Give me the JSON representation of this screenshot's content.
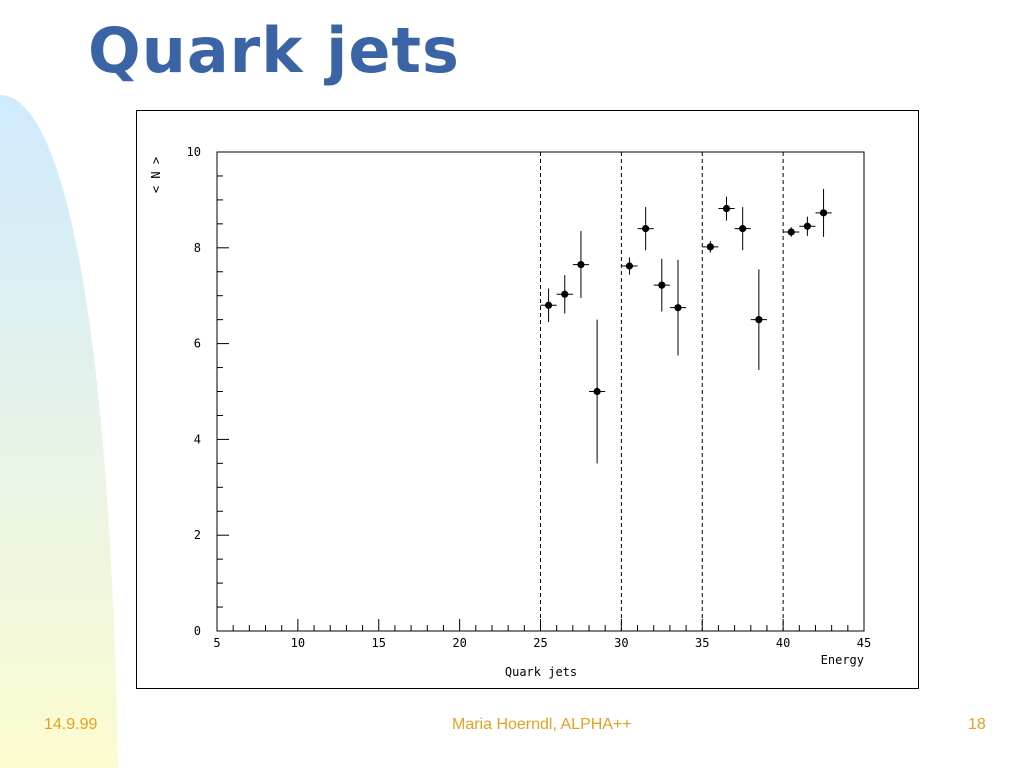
{
  "slide": {
    "title": "Quark jets",
    "footer_left": "14.9.99",
    "footer_center": "Maria Hoerndl, ALPHA++",
    "footer_right": "18"
  },
  "colors": {
    "title": "#3a64a6",
    "footer": "#e6a020",
    "band_top": "#cfeaff",
    "band_bottom": "#fcfcd0"
  },
  "chart_data": {
    "type": "scatter",
    "title": "Quark jets",
    "xlabel": "Energy",
    "ylabel": "< N >",
    "xlim": [
      5,
      45
    ],
    "ylim": [
      0,
      10
    ],
    "x_ticks": [
      5,
      10,
      15,
      20,
      25,
      30,
      35,
      40,
      45
    ],
    "y_ticks": [
      0,
      2,
      4,
      6,
      8,
      10
    ],
    "vertical_lines": [
      25,
      30,
      35,
      40
    ],
    "grid": false,
    "x_errors": 0.5,
    "series": [
      {
        "points": [
          {
            "x": 25.5,
            "y": 6.8,
            "err": 0.35
          },
          {
            "x": 26.5,
            "y": 7.03,
            "err": 0.4
          },
          {
            "x": 27.5,
            "y": 7.65,
            "err": 0.7
          },
          {
            "x": 28.5,
            "y": 5.0,
            "err": 1.5
          },
          {
            "x": 30.5,
            "y": 7.62,
            "err": 0.18
          },
          {
            "x": 31.5,
            "y": 8.4,
            "err": 0.45
          },
          {
            "x": 32.5,
            "y": 7.22,
            "err": 0.55
          },
          {
            "x": 33.5,
            "y": 6.75,
            "err": 1.0
          },
          {
            "x": 35.5,
            "y": 8.02,
            "err": 0.12
          },
          {
            "x": 36.5,
            "y": 8.82,
            "err": 0.25
          },
          {
            "x": 37.5,
            "y": 8.4,
            "err": 0.45
          },
          {
            "x": 38.5,
            "y": 6.5,
            "err": 1.05
          },
          {
            "x": 40.5,
            "y": 8.33,
            "err": 0.1
          },
          {
            "x": 41.5,
            "y": 8.45,
            "err": 0.2
          },
          {
            "x": 42.5,
            "y": 8.73,
            "err": 0.5
          }
        ]
      }
    ]
  }
}
